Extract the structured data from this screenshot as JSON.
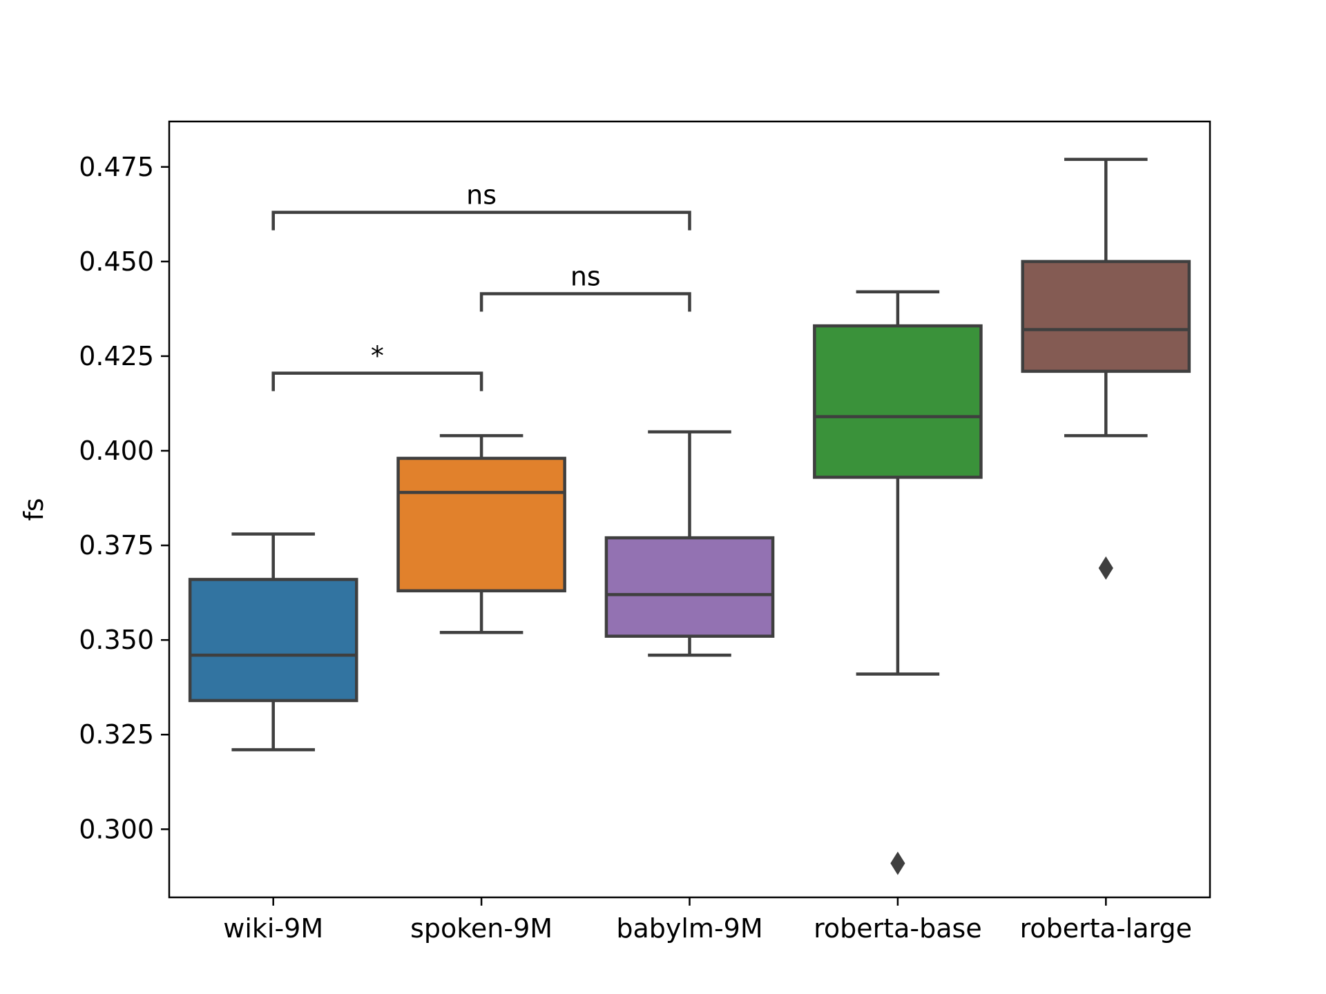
{
  "chart_data": {
    "type": "box",
    "title": "",
    "xlabel": "",
    "ylabel": "fs",
    "ylim": [
      0.282,
      0.487
    ],
    "yticks": [
      0.3,
      0.325,
      0.35,
      0.375,
      0.4,
      0.425,
      0.45,
      0.475
    ],
    "ytick_labels": [
      "0.300",
      "0.325",
      "0.350",
      "0.375",
      "0.400",
      "0.425",
      "0.450",
      "0.475"
    ],
    "grid": false,
    "legend": "none",
    "categories": [
      "wiki-9M",
      "spoken-9M",
      "babylm-9M",
      "roberta-base",
      "roberta-large"
    ],
    "boxes": [
      {
        "category": "wiki-9M",
        "whisker_low": 0.321,
        "q1": 0.334,
        "median": 0.346,
        "q3": 0.366,
        "whisker_high": 0.378,
        "outliers": [],
        "color": "#3274a1"
      },
      {
        "category": "spoken-9M",
        "whisker_low": 0.352,
        "q1": 0.363,
        "median": 0.389,
        "q3": 0.398,
        "whisker_high": 0.404,
        "outliers": [],
        "color": "#e1812c"
      },
      {
        "category": "babylm-9M",
        "whisker_low": 0.346,
        "q1": 0.351,
        "median": 0.362,
        "q3": 0.377,
        "whisker_high": 0.405,
        "outliers": [],
        "color": "#9372b2"
      },
      {
        "category": "roberta-base",
        "whisker_low": 0.341,
        "q1": 0.393,
        "median": 0.409,
        "q3": 0.433,
        "whisker_high": 0.442,
        "outliers": [
          0.291
        ],
        "color": "#3a923a"
      },
      {
        "category": "roberta-large",
        "whisker_low": 0.404,
        "q1": 0.421,
        "median": 0.432,
        "q3": 0.45,
        "whisker_high": 0.477,
        "outliers": [
          0.369
        ],
        "color": "#845b53"
      }
    ],
    "annotations": [
      {
        "from": "wiki-9M",
        "to": "spoken-9M",
        "label": "*",
        "y": 0.4205
      },
      {
        "from": "spoken-9M",
        "to": "babylm-9M",
        "label": "ns",
        "y": 0.4415
      },
      {
        "from": "wiki-9M",
        "to": "babylm-9M",
        "label": "ns",
        "y": 0.463
      }
    ],
    "line_color": "#3f3f3f"
  }
}
